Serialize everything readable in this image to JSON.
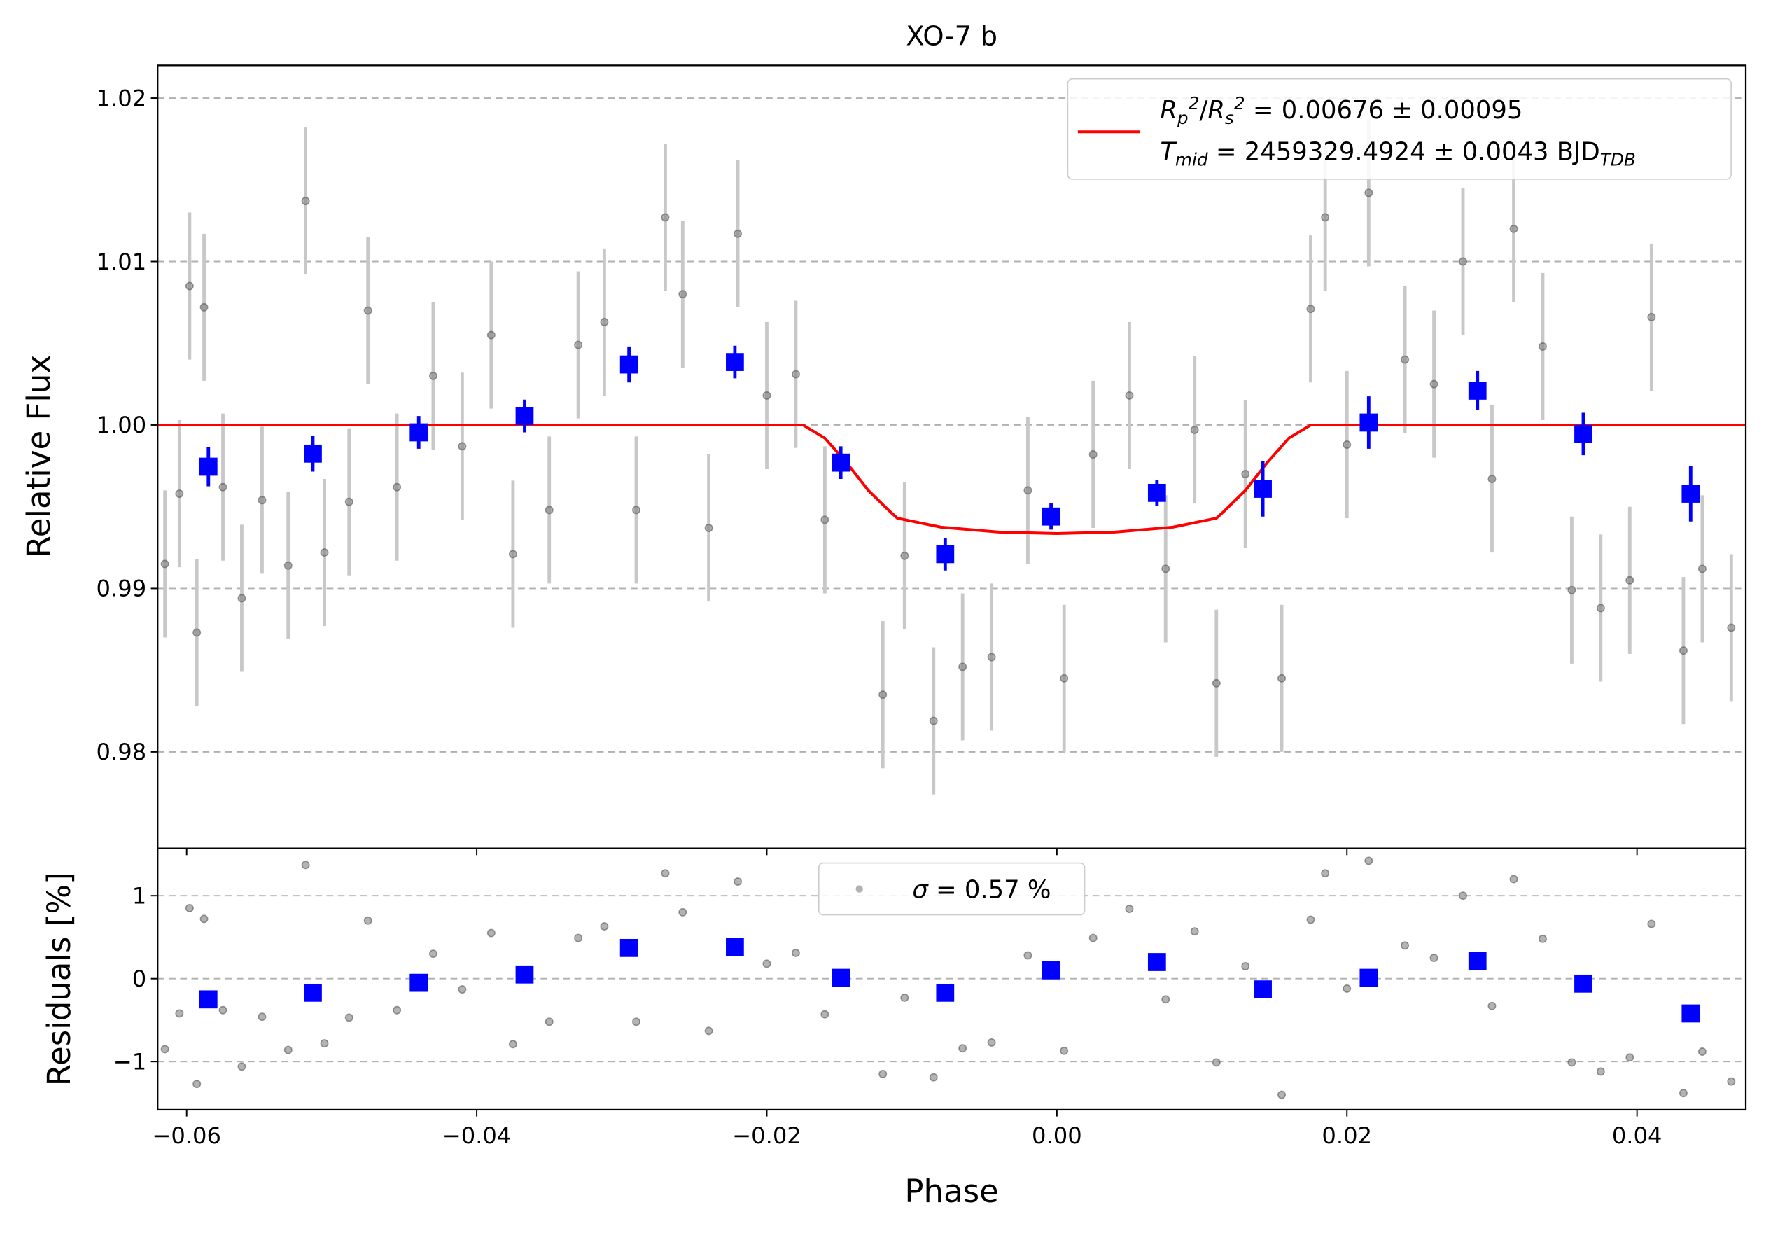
{
  "chart_data": [
    {
      "type": "scatter",
      "title": "XO-7 b",
      "y_label": "Relative Flux",
      "xlim": [
        -0.062,
        0.0475
      ],
      "ylim": [
        0.9741,
        1.022
      ],
      "yticks": [
        0.98,
        0.99,
        {
          "value": 1.0,
          "label": "1.00"
        },
        1.01,
        1.02
      ],
      "grid": true,
      "raw": {
        "color": "#808080",
        "error_color": "#c8c8c8",
        "x": [
          -0.0615,
          -0.0605,
          -0.0598,
          -0.0593,
          -0.0588,
          -0.0575,
          -0.0562,
          -0.0548,
          -0.053,
          -0.0518,
          -0.0505,
          -0.0488,
          -0.0475,
          -0.0455,
          -0.043,
          -0.041,
          -0.039,
          -0.0375,
          -0.035,
          -0.033,
          -0.0312,
          -0.029,
          -0.027,
          -0.0258,
          -0.024,
          -0.022,
          -0.02,
          -0.018,
          -0.016,
          -0.012,
          -0.0105,
          -0.0085,
          -0.0065,
          -0.0045,
          -0.002,
          0.0005,
          0.0025,
          0.005,
          0.0075,
          0.0095,
          0.011,
          0.013,
          0.0155,
          0.0175,
          0.0185,
          0.02,
          0.0215,
          0.024,
          0.026,
          0.028,
          0.03,
          0.0315,
          0.0335,
          0.0355,
          0.0375,
          0.0395,
          0.041,
          0.0432,
          0.0445,
          0.0465
        ],
        "values": [
          0.9915,
          0.9958,
          1.0085,
          0.9873,
          1.0072,
          0.9962,
          0.9894,
          0.9954,
          0.9914,
          1.0137,
          0.9922,
          0.9953,
          1.007,
          0.9962,
          1.003,
          0.9987,
          1.0055,
          0.9921,
          0.9948,
          1.0049,
          1.0063,
          0.9948,
          1.0127,
          1.008,
          0.9937,
          1.0117,
          1.0018,
          1.0031,
          0.9942,
          0.9835,
          0.992,
          0.9819,
          0.9852,
          0.9858,
          0.996,
          0.9845,
          0.9982,
          1.0018,
          0.9912,
          0.9997,
          0.9842,
          0.997,
          0.9845,
          1.0071,
          1.0127,
          0.9988,
          1.0142,
          1.004,
          1.0025,
          1.01,
          0.9967,
          1.012,
          1.0048,
          0.9899,
          0.9888,
          0.9905,
          1.0066,
          0.9862,
          0.9912,
          0.9876
        ],
        "errors": [
          0.0045,
          0.0045,
          0.0045,
          0.0045,
          0.0045,
          0.0045,
          0.0045,
          0.0045,
          0.0045,
          0.0045,
          0.0045,
          0.0045,
          0.0045,
          0.0045,
          0.0045,
          0.0045,
          0.0045,
          0.0045,
          0.0045,
          0.0045,
          0.0045,
          0.0045,
          0.0045,
          0.0045,
          0.0045,
          0.0045,
          0.0045,
          0.0045,
          0.0045,
          0.0045,
          0.0045,
          0.0045,
          0.0045,
          0.0045,
          0.0045,
          0.0045,
          0.0045,
          0.0045,
          0.0045,
          0.0045,
          0.0045,
          0.0045,
          0.0045,
          0.0045,
          0.0045,
          0.0045,
          0.0045,
          0.0045,
          0.0045,
          0.0045,
          0.0045,
          0.0045,
          0.0045,
          0.0045,
          0.0045,
          0.0045,
          0.0045,
          0.0045,
          0.0045,
          0.0045
        ]
      },
      "binned": {
        "color": "#0000ff",
        "x": [
          -0.0585,
          -0.0513,
          -0.044,
          -0.0367,
          -0.0295,
          -0.0222,
          -0.0149,
          -0.0077,
          -0.0004,
          0.0069,
          0.0142,
          0.0215,
          0.029,
          0.0363,
          0.0437
        ],
        "values": [
          0.99745,
          0.99825,
          0.99955,
          1.00055,
          1.0037,
          1.00385,
          0.9977,
          0.9921,
          0.9944,
          0.99585,
          0.9961,
          1.00015,
          1.0021,
          0.99945,
          0.9958
        ],
        "errors": [
          0.0012,
          0.0011,
          0.001,
          0.001,
          0.0011,
          0.001,
          0.001,
          0.001,
          0.0008,
          0.0008,
          0.0017,
          0.0016,
          0.0012,
          0.0013,
          0.0017
        ]
      },
      "model": {
        "color": "#ff0000",
        "x": [
          -0.062,
          -0.0175,
          -0.016,
          -0.0145,
          -0.013,
          -0.0115,
          -0.011,
          -0.008,
          -0.004,
          0,
          0.004,
          0.008,
          0.011,
          0.0115,
          0.013,
          0.0145,
          0.016,
          0.0175,
          0.0475
        ],
        "values": [
          1,
          1,
          0.9992,
          0.9977,
          0.996,
          0.9947,
          0.9943,
          0.99375,
          0.99345,
          0.99336,
          0.99345,
          0.99375,
          0.9943,
          0.9947,
          0.996,
          0.9977,
          0.9992,
          1,
          1
        ],
        "legend_lines": [
          [
            {
              "t": "R",
              "s": "italic"
            },
            {
              "t": "p",
              "s": "sub"
            },
            {
              "t": "2",
              "s": "sup"
            },
            {
              "t": "/",
              "s": "plain"
            },
            {
              "t": "R",
              "s": "italic"
            },
            {
              "t": "s",
              "s": "sub"
            },
            {
              "t": "2",
              "s": "sup"
            },
            {
              "t": " = 0.00676 ± 0.00095",
              "s": "plain"
            }
          ],
          [
            {
              "t": "T",
              "s": "italic"
            },
            {
              "t": "mid",
              "s": "sub"
            },
            {
              "t": " = 2459329.4924 ± 0.0043 BJD",
              "s": "plain"
            },
            {
              "t": "TDB",
              "s": "sub"
            }
          ]
        ]
      }
    },
    {
      "type": "scatter",
      "y_label": "Residuals [%]",
      "x_label": "Phase",
      "xlim": [
        -0.062,
        0.0475
      ],
      "ylim": [
        -1.58,
        1.57
      ],
      "xticks": [
        {
          "value": -0.06,
          "label": "−0.06"
        },
        {
          "value": -0.04,
          "label": "−0.04"
        },
        {
          "value": -0.02,
          "label": "−0.02"
        },
        {
          "value": 0,
          "label": "0.00"
        },
        0.02,
        0.04
      ],
      "yticks": [
        {
          "value": -1,
          "label": "−1"
        },
        0,
        1
      ],
      "grid": true,
      "legend_label": [
        {
          "t": "σ",
          "s": "italic"
        },
        {
          "t": " = 0.57 %",
          "s": "plain"
        }
      ],
      "raw": {
        "color": "#808080",
        "x": [
          -0.0615,
          -0.0605,
          -0.0598,
          -0.0593,
          -0.0588,
          -0.0575,
          -0.0562,
          -0.0548,
          -0.053,
          -0.0518,
          -0.0505,
          -0.0488,
          -0.0475,
          -0.0455,
          -0.043,
          -0.041,
          -0.039,
          -0.0375,
          -0.035,
          -0.033,
          -0.0312,
          -0.029,
          -0.027,
          -0.0258,
          -0.024,
          -0.022,
          -0.02,
          -0.018,
          -0.016,
          -0.012,
          -0.0105,
          -0.0085,
          -0.0065,
          -0.0045,
          -0.002,
          0.0005,
          0.0025,
          0.005,
          0.0075,
          0.0095,
          0.011,
          0.013,
          0.0155,
          0.0175,
          0.0185,
          0.02,
          0.0215,
          0.024,
          0.026,
          0.028,
          0.03,
          0.0315,
          0.0335,
          0.0355,
          0.0375,
          0.0395,
          0.041,
          0.0432,
          0.0445,
          0.0465
        ],
        "values": [
          -0.85,
          -0.42,
          0.85,
          -1.27,
          0.72,
          -0.38,
          -1.06,
          -0.46,
          -0.86,
          1.37,
          -0.78,
          -0.47,
          0.7,
          -0.38,
          0.3,
          -0.13,
          0.55,
          -0.79,
          -0.52,
          0.49,
          0.63,
          -0.52,
          1.27,
          0.8,
          -0.63,
          1.17,
          0.18,
          0.31,
          -0.43,
          -1.15,
          -0.23,
          -1.19,
          -0.84,
          -0.77,
          0.28,
          -0.87,
          0.49,
          0.84,
          -0.25,
          0.57,
          -1.01,
          0.15,
          -1.4,
          0.71,
          1.27,
          -0.12,
          1.42,
          0.4,
          0.25,
          1.0,
          -0.33,
          1.2,
          0.48,
          -1.01,
          -1.12,
          -0.95,
          0.66,
          -1.38,
          -0.88,
          -1.24
        ]
      },
      "binned": {
        "color": "#0000ff",
        "x": [
          -0.0585,
          -0.0513,
          -0.044,
          -0.0367,
          -0.0295,
          -0.0222,
          -0.0149,
          -0.0077,
          -0.0004,
          0.0069,
          0.0142,
          0.0215,
          0.029,
          0.0363,
          0.0437
        ],
        "values": [
          -0.25,
          -0.17,
          -0.05,
          0.05,
          0.37,
          0.38,
          0.01,
          -0.17,
          0.1,
          0.2,
          -0.13,
          0.01,
          0.21,
          -0.06,
          -0.42
        ]
      }
    }
  ]
}
